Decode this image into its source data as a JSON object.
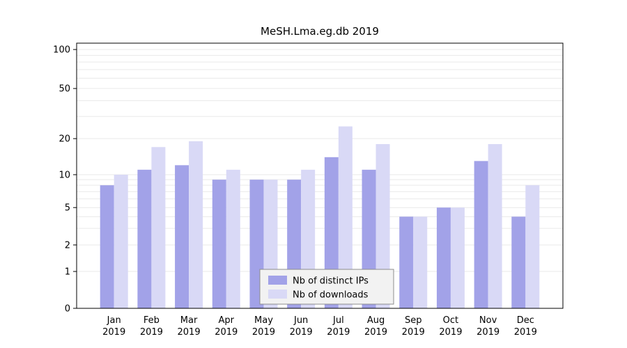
{
  "title": "MeSH.Lma.eg.db 2019",
  "colors": {
    "ips_bar": "#a2a2e8",
    "downloads_bar": "#d9d9f6",
    "grid": "#e9e9e9",
    "axis": "#000000",
    "legend_bg": "#f2f2f2",
    "legend_border": "#8c8c8c"
  },
  "legend": {
    "items": [
      {
        "label": "Nb of distinct IPs",
        "color_key": "ips_bar"
      },
      {
        "label": "Nb of downloads",
        "color_key": "downloads_bar"
      }
    ]
  },
  "chart_data": {
    "type": "bar",
    "title": "MeSH.Lma.eg.db 2019",
    "categories": [
      "Jan 2019",
      "Feb 2019",
      "Mar 2019",
      "Apr 2019",
      "May 2019",
      "Jun 2019",
      "Jul 2019",
      "Aug 2019",
      "Sep 2019",
      "Oct 2019",
      "Nov 2019",
      "Dec 2019"
    ],
    "series": [
      {
        "name": "Nb of distinct IPs",
        "values": [
          8,
          11,
          12,
          9,
          9,
          9,
          14,
          11,
          4,
          5,
          13,
          4
        ]
      },
      {
        "name": "Nb of downloads",
        "values": [
          10,
          17,
          19,
          11,
          9,
          11,
          25,
          18,
          4,
          5,
          18,
          8
        ]
      }
    ],
    "xlabel": "",
    "ylabel": "",
    "yscale": "log-like (0,1..100)",
    "yticks": [
      0,
      1,
      2,
      5,
      10,
      20,
      50,
      100
    ],
    "minor_gridlines": [
      1,
      2,
      3,
      4,
      5,
      6,
      7,
      8,
      9,
      10,
      20,
      30,
      40,
      50,
      60,
      70,
      80,
      90,
      100
    ],
    "ylim": [
      0,
      100
    ],
    "grid": true,
    "legend_position": "bottom-center-inside"
  }
}
